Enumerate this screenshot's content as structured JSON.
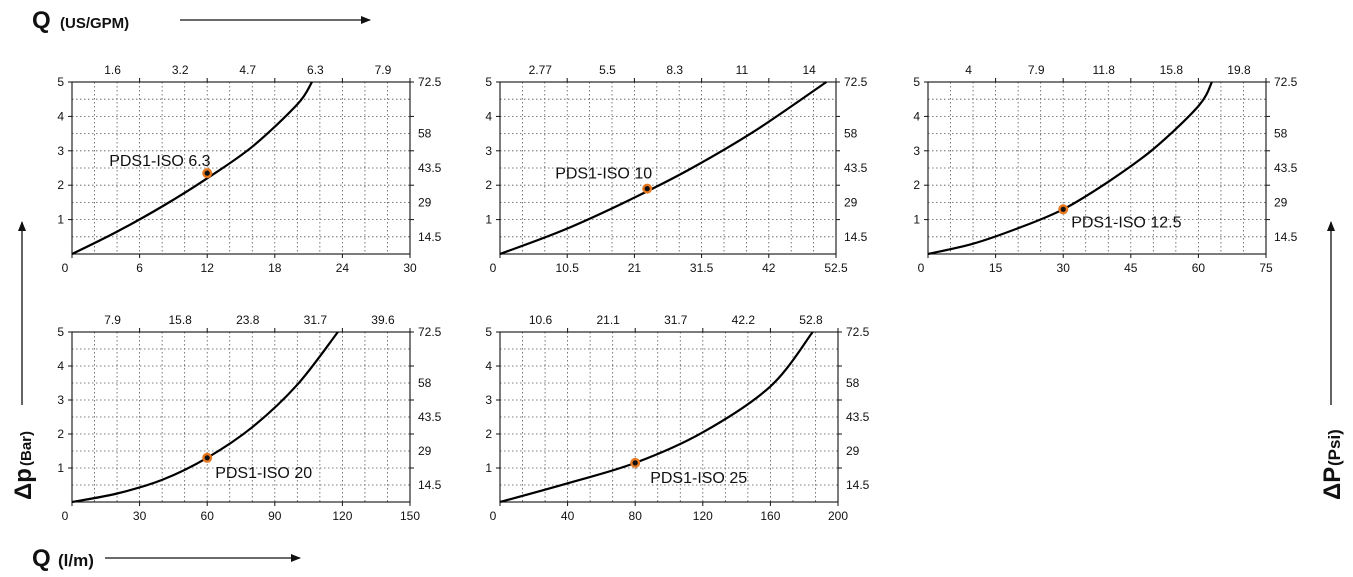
{
  "labels": {
    "q_gpm_main": "Q",
    "q_gpm_unit": "(US/GPM)",
    "q_lm_main": "Q",
    "q_lm_unit": "(l/m)",
    "dp_bar_main": "Δp",
    "dp_bar_unit": "(Bar)",
    "dp_psi_main": "ΔP",
    "dp_psi_unit": "(Psi)"
  },
  "colors": {
    "curve": "#000000",
    "marker_ring": "#e8781e",
    "marker_core": "#111111",
    "grid": "#555555"
  },
  "chart_data": [
    {
      "type": "line",
      "annotation": "PDS1-ISO 6.3",
      "x_bottom_ticks": [
        "0",
        "6",
        "12",
        "18",
        "24",
        "30"
      ],
      "x_top_ticks": [
        "1.6",
        "3.2",
        "4.7",
        "6.3",
        "7.9"
      ],
      "y_left_ticks": [
        "1",
        "2",
        "3",
        "4",
        "5"
      ],
      "y_right_ticks": [
        "14.5",
        "29",
        "43.5",
        "58",
        "72.5"
      ],
      "xlim": [
        0,
        30
      ],
      "ylim": [
        0,
        5
      ],
      "curve": {
        "x": [
          0,
          4,
          8,
          12,
          16,
          20,
          21.3
        ],
        "y": [
          0,
          0.65,
          1.38,
          2.2,
          3.12,
          4.35,
          5
        ]
      },
      "point": {
        "x": 12,
        "y": 2.35
      }
    },
    {
      "type": "line",
      "annotation": "PDS1-ISO 10",
      "x_bottom_ticks": [
        "0",
        "10.5",
        "21",
        "31.5",
        "42",
        "52.5"
      ],
      "x_top_ticks": [
        "2.77",
        "5.5",
        "8.3",
        "11",
        "14"
      ],
      "y_left_ticks": [
        "1",
        "2",
        "3",
        "4",
        "5"
      ],
      "y_right_ticks": [
        "14.5",
        "29",
        "43.5",
        "58",
        "72.5"
      ],
      "xlim": [
        0,
        52.5
      ],
      "ylim": [
        0,
        5
      ],
      "curve": {
        "x": [
          0,
          10,
          20,
          30,
          40,
          51
        ],
        "y": [
          0,
          0.7,
          1.55,
          2.5,
          3.6,
          5
        ]
      },
      "point": {
        "x": 23,
        "y": 1.9
      }
    },
    {
      "type": "line",
      "annotation": "PDS1-ISO 12.5",
      "x_bottom_ticks": [
        "0",
        "15",
        "30",
        "45",
        "60",
        "75"
      ],
      "x_top_ticks": [
        "4",
        "7.9",
        "11.8",
        "15.8",
        "19.8"
      ],
      "y_left_ticks": [
        "1",
        "2",
        "3",
        "4",
        "5"
      ],
      "y_right_ticks": [
        "14.5",
        "29",
        "43.5",
        "58",
        "72.5"
      ],
      "xlim": [
        0,
        75
      ],
      "ylim": [
        0,
        5
      ],
      "curve": {
        "x": [
          0,
          10,
          20,
          30,
          40,
          50,
          60,
          63
        ],
        "y": [
          0,
          0.3,
          0.75,
          1.3,
          2.1,
          3.05,
          4.3,
          5
        ]
      },
      "point": {
        "x": 30,
        "y": 1.3
      }
    },
    {
      "type": "line",
      "annotation": "PDS1-ISO 20",
      "x_bottom_ticks": [
        "0",
        "30",
        "60",
        "90",
        "120",
        "150"
      ],
      "x_top_ticks": [
        "7.9",
        "15.8",
        "23.8",
        "31.7",
        "39.6"
      ],
      "y_left_ticks": [
        "1",
        "2",
        "3",
        "4",
        "5"
      ],
      "y_right_ticks": [
        "14.5",
        "29",
        "43.5",
        "58",
        "72.5"
      ],
      "xlim": [
        0,
        150
      ],
      "ylim": [
        0,
        5
      ],
      "curve": {
        "x": [
          0,
          20,
          40,
          60,
          80,
          100,
          118
        ],
        "y": [
          0,
          0.25,
          0.65,
          1.3,
          2.2,
          3.45,
          5
        ]
      },
      "point": {
        "x": 60,
        "y": 1.3
      }
    },
    {
      "type": "line",
      "annotation": "PDS1-ISO 25",
      "x_bottom_ticks": [
        "0",
        "40",
        "80",
        "120",
        "160",
        "200"
      ],
      "x_top_ticks": [
        "10.6",
        "21.1",
        "31.7",
        "42.2",
        "52.8"
      ],
      "y_left_ticks": [
        "1",
        "2",
        "3",
        "4",
        "5"
      ],
      "y_right_ticks": [
        "14.5",
        "29",
        "43.5",
        "58",
        "72.5"
      ],
      "xlim": [
        0,
        200
      ],
      "ylim": [
        0,
        5
      ],
      "curve": {
        "x": [
          0,
          40,
          80,
          120,
          160,
          185
        ],
        "y": [
          0,
          0.55,
          1.15,
          2.05,
          3.4,
          5
        ]
      },
      "point": {
        "x": 80,
        "y": 1.15
      }
    }
  ]
}
